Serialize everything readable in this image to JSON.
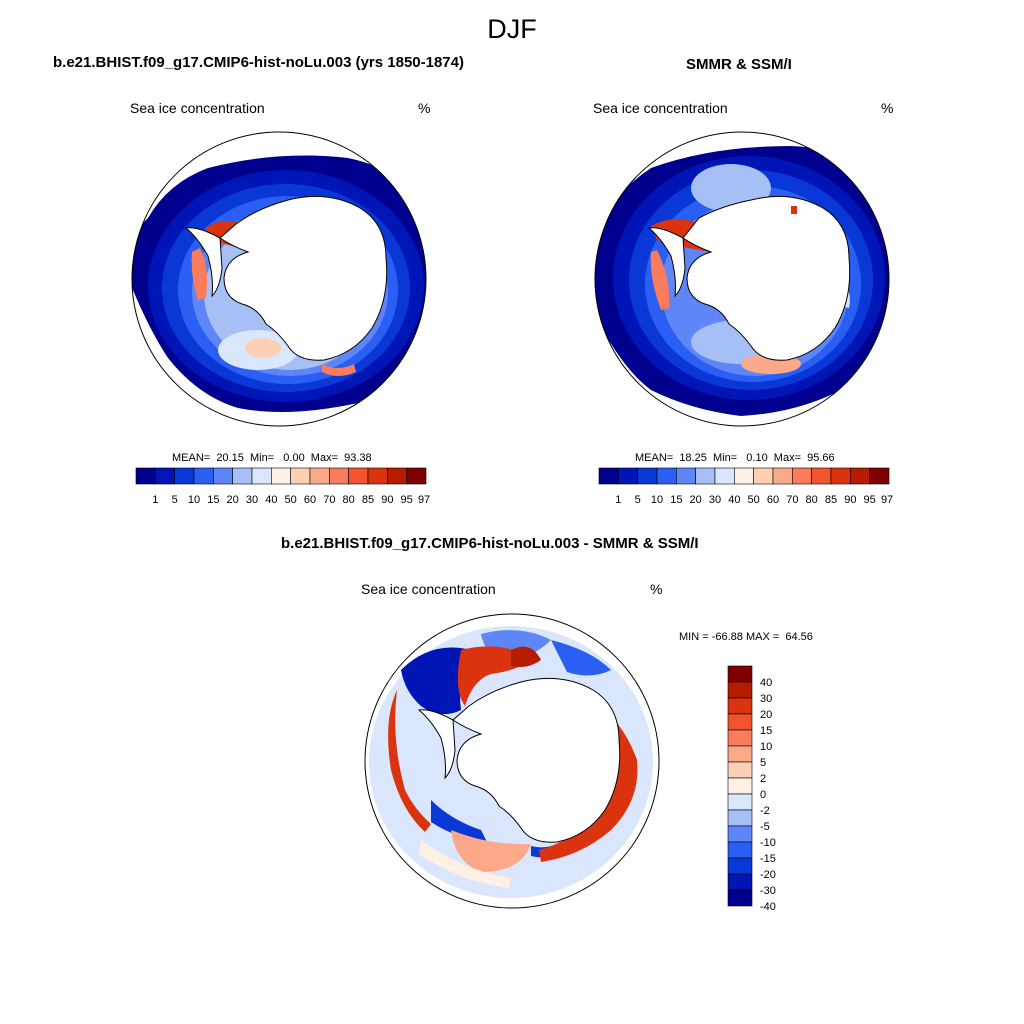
{
  "figure": {
    "season": "DJF"
  },
  "colors": {
    "abs_scale": [
      "#00008f",
      "#0015b5",
      "#0a38d6",
      "#2b5ef2",
      "#5e86f7",
      "#a6c0f5",
      "#d9e6fb",
      "#fff0e6",
      "#fdd0b5",
      "#fca989",
      "#f97d5d",
      "#f2542f",
      "#d93310",
      "#b51c00",
      "#7f0000"
    ],
    "diff_scale": [
      "#00008f",
      "#0015b5",
      "#0a38d6",
      "#2b5ef2",
      "#5e86f7",
      "#a6c0f5",
      "#d9e6fb",
      "#fff0e6",
      "#fdd0b5",
      "#fca989",
      "#f97d5d",
      "#f2542f",
      "#d93310",
      "#b51c00",
      "#7f0000"
    ],
    "land": "#ffffff",
    "outline": "#000000"
  },
  "panels": [
    {
      "title": "b.e21.BHIST.f09_g17.CMIP6-hist-noLu.003 (yrs 1850-1874)",
      "left_label": "Sea ice concentration",
      "right_label": "%",
      "stats": "MEAN=  20.15  Min=   0.00  Max=  93.38"
    },
    {
      "title": "SMMR & SSM/I",
      "left_label": "Sea ice concentration",
      "right_label": "%",
      "stats": "MEAN=  18.25  Min=   0.10  Max=  95.66"
    },
    {
      "title": "b.e21.BHIST.f09_g17.CMIP6-hist-noLu.003 - SMMR & SSM/I",
      "left_label": "Sea ice concentration",
      "right_label": "%",
      "stats": "MIN = -66.88 MAX =  64.56"
    }
  ],
  "chart_data": [
    {
      "type": "heatmap",
      "title": "b.e21.BHIST.f09_g17.CMIP6-hist-noLu.003 (yrs 1850-1874)",
      "variable": "Sea ice concentration",
      "units": "%",
      "projection": "south polar stereographic",
      "levels": [
        "1",
        "5",
        "10",
        "15",
        "20",
        "30",
        "40",
        "50",
        "60",
        "70",
        "80",
        "85",
        "90",
        "95",
        "97"
      ],
      "mean": 20.15,
      "min": 0.0,
      "max": 93.38
    },
    {
      "type": "heatmap",
      "title": "SMMR & SSM/I",
      "variable": "Sea ice concentration",
      "units": "%",
      "projection": "south polar stereographic",
      "levels": [
        "1",
        "5",
        "10",
        "15",
        "20",
        "30",
        "40",
        "50",
        "60",
        "70",
        "80",
        "85",
        "90",
        "95",
        "97"
      ],
      "mean": 18.25,
      "min": 0.1,
      "max": 95.66
    },
    {
      "type": "heatmap",
      "title": "b.e21.BHIST.f09_g17.CMIP6-hist-noLu.003 - SMMR & SSM/I",
      "variable": "Sea ice concentration",
      "units": "%",
      "projection": "south polar stereographic",
      "levels": [
        "-40",
        "-30",
        "-20",
        "-15",
        "-10",
        "-5",
        "-2",
        "0",
        "2",
        "5",
        "10",
        "15",
        "20",
        "30",
        "40"
      ],
      "min": -66.88,
      "max": 64.56
    }
  ]
}
